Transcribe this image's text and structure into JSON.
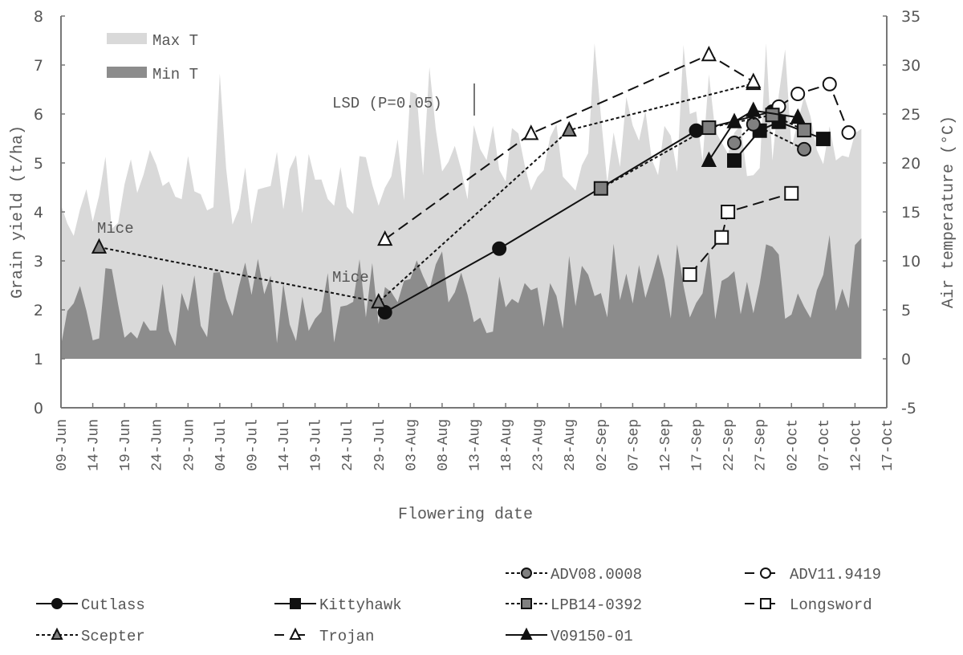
{
  "chart_data": {
    "type": "line",
    "title": "",
    "xlabel": "Flowering date",
    "ylabel": "Grain yield (t/ha)",
    "ylabel_right": "Air temperature (°C)",
    "ylim": [
      0,
      8
    ],
    "ylim_right": [
      -5,
      35
    ],
    "yticks": [
      0,
      1,
      2,
      3,
      4,
      5,
      6,
      7,
      8
    ],
    "yticks_right": [
      -5,
      0,
      5,
      10,
      15,
      20,
      25,
      30,
      35
    ],
    "x_range": [
      "09-Jun",
      "17-Oct"
    ],
    "x_tick_labels": [
      "09-Jun",
      "14-Jun",
      "19-Jun",
      "24-Jun",
      "29-Jun",
      "04-Jul",
      "09-Jul",
      "14-Jul",
      "19-Jul",
      "24-Jul",
      "29-Jul",
      "03-Aug",
      "08-Aug",
      "13-Aug",
      "18-Aug",
      "23-Aug",
      "28-Aug",
      "02-Sep",
      "07-Sep",
      "12-Sep",
      "17-Sep",
      "22-Sep",
      "27-Sep",
      "02-Oct",
      "07-Oct",
      "12-Oct",
      "17-Oct"
    ],
    "grid": false,
    "annotations": [
      {
        "text": "Mice",
        "near": "Scepter 15-Jun"
      },
      {
        "text": "Mice",
        "near": "Scepter 29-Jul"
      },
      {
        "text": "LSD (P=0.05)",
        "value": 0.66
      }
    ],
    "area_legend": [
      {
        "name": "Max T",
        "color": "#d9d9d9"
      },
      {
        "name": "Min T",
        "color": "#8c8c8c"
      }
    ],
    "series": [
      {
        "name": "Cutlass",
        "marker": "circle",
        "fill": "#111111",
        "line": "solid",
        "points": [
          [
            "30-Jul",
            1.95
          ],
          [
            "17-Aug",
            3.25
          ],
          [
            "17-Sep",
            5.66
          ],
          [
            "29-Sep",
            6.05
          ]
        ]
      },
      {
        "name": "Kittyhawk",
        "marker": "square",
        "fill": "#111111",
        "line": "solid",
        "points": [
          [
            "23-Sep",
            5.05
          ],
          [
            "27-Sep",
            5.66
          ],
          [
            "30-Sep",
            5.84
          ],
          [
            "07-Oct",
            5.49
          ]
        ]
      },
      {
        "name": "ADV08.0008",
        "marker": "circle",
        "fill": "#808080",
        "line": "dotted",
        "points": [
          [
            "23-Sep",
            5.41
          ],
          [
            "26-Sep",
            5.79
          ],
          [
            "04-Oct",
            5.28
          ]
        ]
      },
      {
        "name": "ADV11.9419",
        "marker": "circle",
        "fill": "#ffffff",
        "line": "dashed",
        "points": [
          [
            "30-Sep",
            6.15
          ],
          [
            "03-Oct",
            6.41
          ],
          [
            "08-Oct",
            6.61
          ],
          [
            "11-Oct",
            5.62
          ]
        ]
      },
      {
        "name": "LPB14-0392",
        "marker": "square",
        "fill": "#808080",
        "line": "dotted",
        "points": [
          [
            "02-Sep",
            4.48
          ],
          [
            "19-Sep",
            5.72
          ],
          [
            "29-Sep",
            5.98
          ],
          [
            "04-Oct",
            5.67
          ]
        ]
      },
      {
        "name": "Longsword",
        "marker": "square",
        "fill": "#ffffff",
        "line": "dashed",
        "points": [
          [
            "16-Sep",
            2.72
          ],
          [
            "21-Sep",
            3.48
          ],
          [
            "22-Sep",
            4.0
          ],
          [
            "02-Oct",
            4.38
          ]
        ]
      },
      {
        "name": "Scepter",
        "marker": "triangle",
        "fill": "#808080",
        "line": "dotted",
        "points": [
          [
            "15-Jun",
            3.28
          ],
          [
            "29-Jul",
            2.16
          ],
          [
            "28-Aug",
            5.67
          ],
          [
            "26-Sep",
            6.62
          ]
        ]
      },
      {
        "name": "Trojan",
        "marker": "triangle",
        "fill": "#ffffff",
        "line": "dashed",
        "points": [
          [
            "30-Jul",
            3.44
          ],
          [
            "22-Aug",
            5.6
          ],
          [
            "19-Sep",
            7.21
          ],
          [
            "26-Sep",
            6.66
          ]
        ]
      },
      {
        "name": "V09150-01",
        "marker": "triangle",
        "fill": "#111111",
        "line": "solid",
        "points": [
          [
            "19-Sep",
            5.05
          ],
          [
            "23-Sep",
            5.84
          ],
          [
            "26-Sep",
            6.07
          ],
          [
            "03-Oct",
            5.93
          ]
        ]
      }
    ],
    "legend_position": "bottom"
  },
  "labels": {
    "xlabel": "Flowering date",
    "ylabel": "Grain yield (t/ha)",
    "ylabel_right": "Air temperature (°C)",
    "lsd": "LSD (P=0.05)",
    "mice1": "Mice",
    "mice2": "Mice",
    "max_t": "Max T",
    "min_t": "Min T"
  }
}
